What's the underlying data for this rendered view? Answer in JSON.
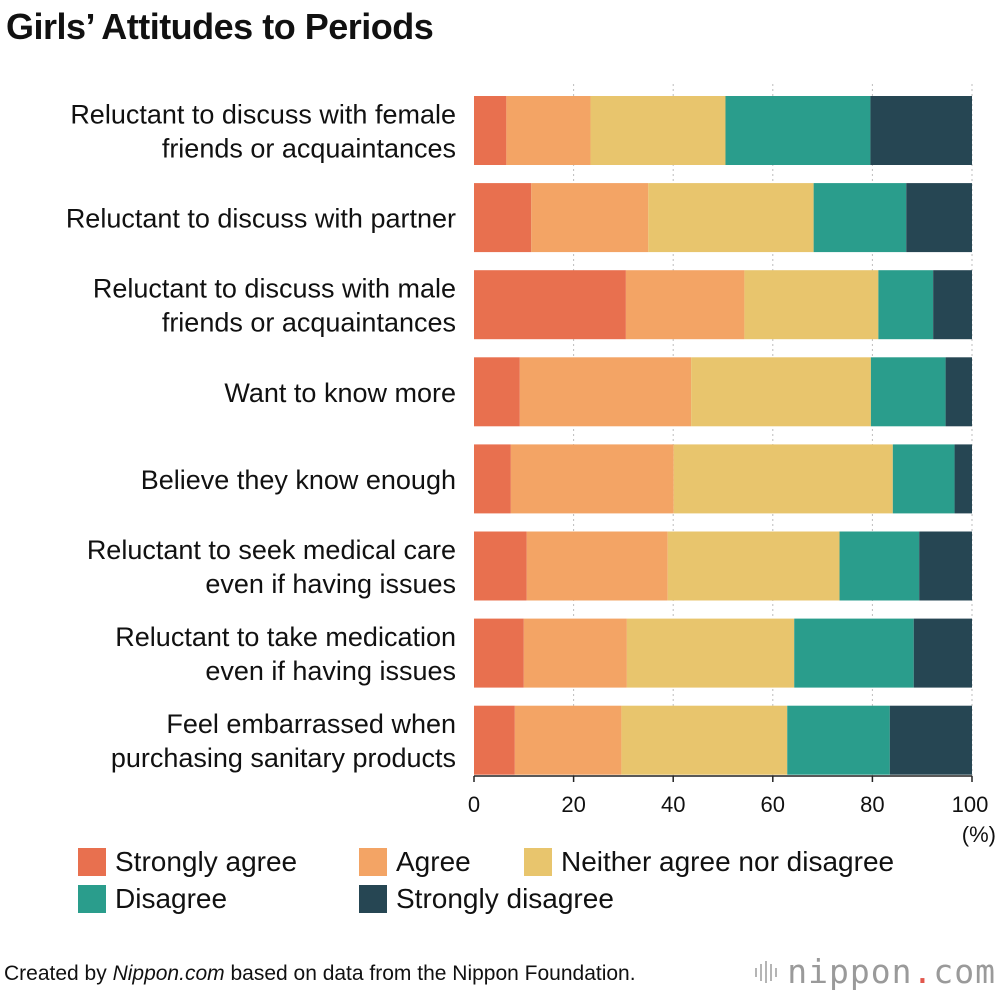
{
  "title": "Girls’ Attitudes to Periods",
  "colors": {
    "strongly_agree": "#e8704f",
    "agree": "#f3a465",
    "neither": "#e8c56d",
    "disagree": "#2a9d8c",
    "strongly_disagree": "#264653",
    "gridline": "#bdbdbd",
    "axis": "#222222"
  },
  "chart_data": {
    "type": "bar",
    "orientation": "horizontal",
    "stacked": true,
    "title": "Girls’ Attitudes to Periods",
    "xlabel": "",
    "ylabel": "",
    "x_unit": "(%)",
    "xlim": [
      0,
      100
    ],
    "xticks": [
      0,
      20,
      40,
      60,
      80,
      100
    ],
    "categories": [
      [
        "Reluctant to discuss with female",
        "friends or acquaintances"
      ],
      [
        "Reluctant to discuss with partner"
      ],
      [
        "Reluctant to discuss with male",
        "friends or acquaintances"
      ],
      [
        "Want to know more"
      ],
      [
        "Believe they know enough"
      ],
      [
        "Reluctant to seek medical care",
        "even if having issues"
      ],
      [
        "Reluctant to take medication",
        "even if having issues"
      ],
      [
        "Feel embarrassed when",
        "purchasing sanitary products"
      ]
    ],
    "series": [
      {
        "name": "Strongly agree",
        "color_key": "strongly_agree",
        "values": [
          6.5,
          11.5,
          30.5,
          9.2,
          7.4,
          10.6,
          10.0,
          8.2
        ]
      },
      {
        "name": "Agree",
        "color_key": "agree",
        "values": [
          16.9,
          23.5,
          23.8,
          34.4,
          32.7,
          28.3,
          20.7,
          21.4
        ]
      },
      {
        "name": "Neither agree nor disagree",
        "color_key": "neither",
        "values": [
          27.1,
          33.2,
          26.9,
          36.1,
          44.0,
          34.5,
          33.6,
          33.3
        ]
      },
      {
        "name": "Disagree",
        "color_key": "disagree",
        "values": [
          29.1,
          18.6,
          11.0,
          15.0,
          12.4,
          16.0,
          24.0,
          20.6
        ]
      },
      {
        "name": "Strongly disagree",
        "color_key": "strongly_disagree",
        "values": [
          20.4,
          13.2,
          7.8,
          5.3,
          3.5,
          10.6,
          11.7,
          16.5
        ]
      }
    ],
    "legend_position": "bottom"
  },
  "footer": {
    "prefix": "Created by ",
    "source_name": "Nippon.com",
    "suffix": " based on data from the Nippon Foundation."
  },
  "brand": {
    "name": "nippon",
    "dot": ".",
    "tld": "com"
  }
}
